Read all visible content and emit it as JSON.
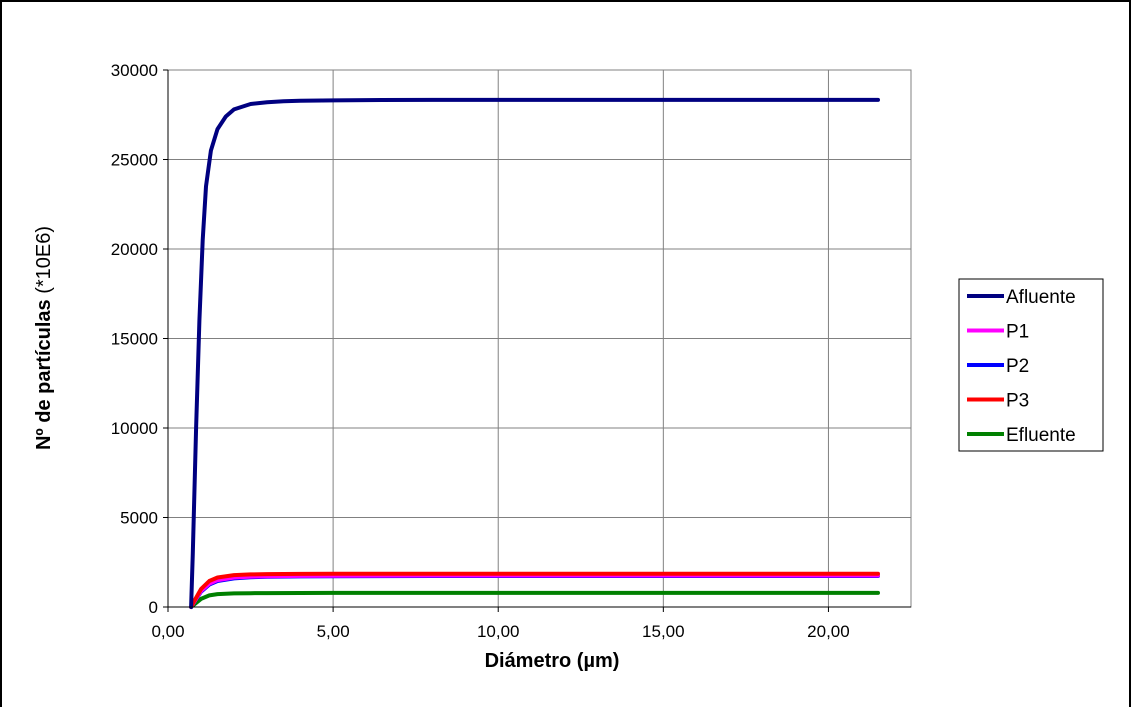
{
  "chart_data": {
    "type": "line",
    "title": "",
    "xlabel": "Diámetro (µm)",
    "ylabel_bold": "Nº de partículas",
    "ylabel_rest": " (*10E6)",
    "xlim": [
      0,
      22.5
    ],
    "ylim": [
      0,
      30000
    ],
    "xticks": [
      0,
      5,
      10,
      15,
      20
    ],
    "xtick_labels": [
      "0,00",
      "5,00",
      "10,00",
      "15,00",
      "20,00"
    ],
    "yticks": [
      0,
      5000,
      10000,
      15000,
      20000,
      25000,
      30000
    ],
    "ytick_labels": [
      "0",
      "5000",
      "10000",
      "15000",
      "20000",
      "25000",
      "30000"
    ],
    "grid": true,
    "legend_position": "right",
    "series": [
      {
        "name": "Afluente",
        "color": "#000080",
        "x": [
          0.7,
          0.75,
          0.85,
          0.95,
          1.05,
          1.15,
          1.3,
          1.5,
          1.75,
          2.0,
          2.5,
          3.0,
          3.5,
          4.0,
          5.0,
          6.0,
          8.0,
          10.0,
          15.0,
          21.5
        ],
        "y": [
          0,
          3000,
          10000,
          16000,
          20500,
          23500,
          25500,
          26700,
          27400,
          27800,
          28100,
          28200,
          28250,
          28280,
          28300,
          28320,
          28330,
          28330,
          28330,
          28330
        ]
      },
      {
        "name": "P1",
        "color": "#ff00ff",
        "x": [
          0.7,
          0.8,
          1.0,
          1.25,
          1.5,
          2.0,
          2.5,
          3.0,
          4.0,
          5.0,
          8.0,
          12.0,
          21.5
        ],
        "y": [
          0,
          300,
          900,
          1300,
          1500,
          1650,
          1700,
          1720,
          1740,
          1750,
          1760,
          1760,
          1760
        ]
      },
      {
        "name": "P2",
        "color": "#0000ff",
        "x": [
          0.7,
          0.8,
          1.0,
          1.25,
          1.5,
          2.0,
          2.5,
          3.0,
          4.0,
          5.0,
          8.0,
          12.0,
          21.5
        ],
        "y": [
          0,
          300,
          850,
          1250,
          1450,
          1600,
          1660,
          1690,
          1710,
          1720,
          1730,
          1730,
          1730
        ]
      },
      {
        "name": "P3",
        "color": "#ff0000",
        "x": [
          0.7,
          0.8,
          1.0,
          1.25,
          1.5,
          2.0,
          2.5,
          3.0,
          4.0,
          5.0,
          8.0,
          12.0,
          21.5
        ],
        "y": [
          0,
          350,
          1000,
          1450,
          1650,
          1780,
          1820,
          1840,
          1850,
          1860,
          1860,
          1860,
          1860
        ]
      },
      {
        "name": "Efluente",
        "color": "#008000",
        "x": [
          0.7,
          0.8,
          1.0,
          1.25,
          1.5,
          2.0,
          2.5,
          3.0,
          4.0,
          5.0,
          8.0,
          12.0,
          21.5
        ],
        "y": [
          0,
          150,
          450,
          650,
          720,
          760,
          770,
          775,
          780,
          785,
          790,
          790,
          790
        ]
      }
    ]
  }
}
